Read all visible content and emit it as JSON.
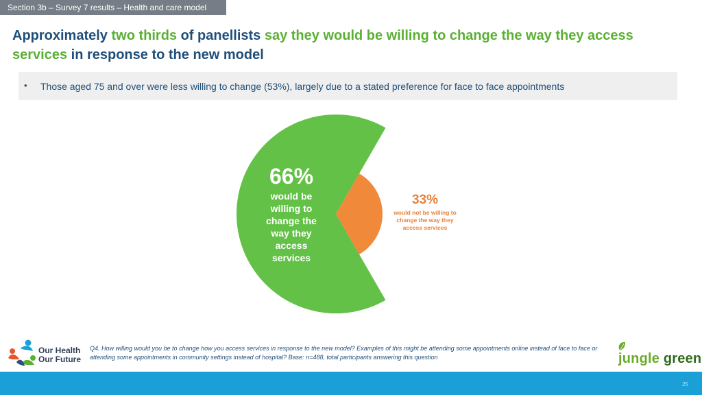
{
  "section_tab": "Section 3b – Survey 7 results – Health and care model",
  "headline": {
    "part1": "Approximately ",
    "part2": "two thirds",
    "part3": " of panellists ",
    "part4": "say they would be willing to change the way they access services",
    "part5": " in response to the new model"
  },
  "bullet": {
    "marker": "•",
    "text": "Those aged 75 and over were less willing to change (53%), largely due to a stated preference for face to face appointments"
  },
  "chart_data": {
    "type": "pie",
    "categories": [
      "Willing to change",
      "Not willing to change"
    ],
    "values": [
      66,
      33
    ],
    "colors": [
      "#62c146",
      "#f0893a"
    ],
    "labels": [
      {
        "pct": "66%",
        "text": "would be willing to change the way they access services"
      },
      {
        "pct": "33%",
        "text": "would not be willing to change the way they access services"
      }
    ]
  },
  "footnote": "Q4. How willing would you be to change how you access services in response to the new model? Examples of this might be attending some appointments online instead of face to face or attending some appointments in community settings instead of hospital?   Base: n=488, total participants answering this question",
  "logo_left": {
    "line1": "Our Health",
    "line2": "Our Future"
  },
  "logo_right": {
    "part1": "jungle ",
    "part2": "green"
  },
  "page_number": "25"
}
